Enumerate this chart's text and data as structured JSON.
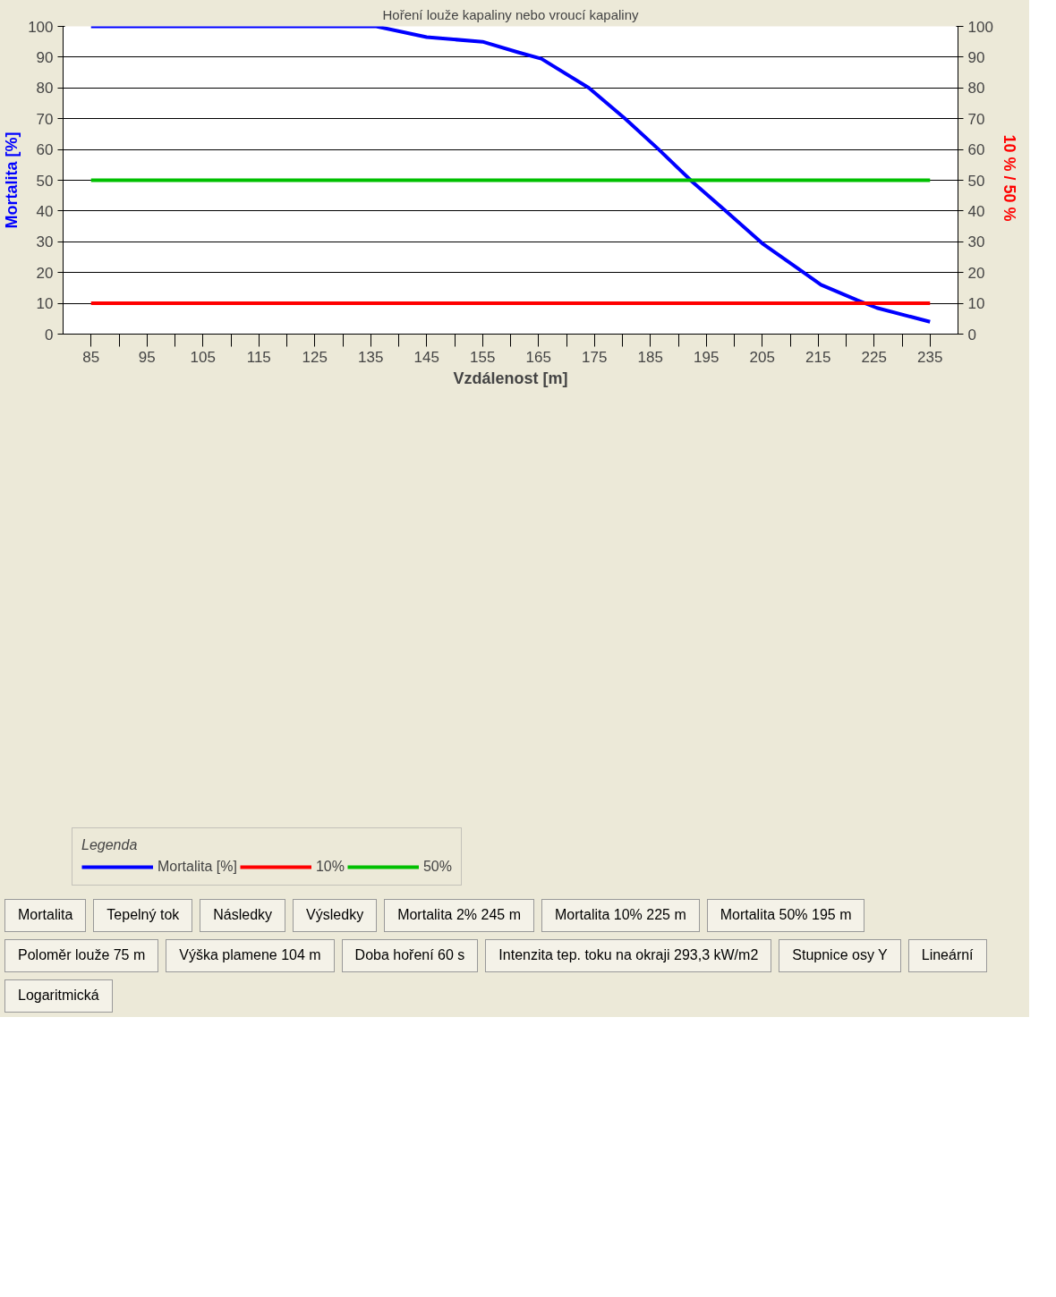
{
  "chart_data": {
    "type": "line",
    "title": "Hoření louže kapaliny nebo vroucí kapaliny",
    "xlabel": "Vzdálenost [m]",
    "ylabel": "Mortalita [%]",
    "y2label": "10 % /  50 %",
    "legend_title": "Legenda",
    "legend": "bottom",
    "grid": "y",
    "line_style": "solid",
    "xlim": [
      80,
      240
    ],
    "xticks": [
      85,
      {
        "value": 90,
        "label": null
      },
      95,
      {
        "value": 100,
        "label": null
      },
      105,
      {
        "value": 110,
        "label": null
      },
      115,
      {
        "value": 120,
        "label": null
      },
      125,
      {
        "value": 130,
        "label": null
      },
      135,
      {
        "value": 140,
        "label": null
      },
      145,
      {
        "value": 150,
        "label": null
      },
      155,
      {
        "value": 160,
        "label": null
      },
      165,
      {
        "value": 170,
        "label": null
      },
      175,
      {
        "value": 180,
        "label": null
      },
      185,
      {
        "value": 190,
        "label": null
      },
      195,
      {
        "value": 200,
        "label": null
      },
      205,
      {
        "value": 210,
        "label": null
      },
      215,
      {
        "value": 220,
        "label": null
      },
      225,
      {
        "value": 230,
        "label": null
      },
      235
    ],
    "ylim": [
      0,
      100
    ],
    "yticks": [
      0,
      10,
      20,
      30,
      40,
      50,
      60,
      70,
      80,
      90,
      100
    ],
    "y2lim": [
      0,
      100
    ],
    "y2ticks": [
      0,
      10,
      20,
      30,
      40,
      50,
      60,
      70,
      80,
      90,
      100
    ],
    "series": [
      {
        "name": "Mortalita [%]",
        "color": "#0000ff",
        "x": [
          85,
          136,
          145,
          155,
          161.5,
          165.5,
          174,
          180.5,
          186.5,
          192.5,
          198.5,
          205,
          212,
          215.5,
          222,
          225.5,
          235
        ],
        "values": [
          100,
          100,
          96.5,
          95,
          91.5,
          89.5,
          80,
          70,
          60,
          49.5,
          40,
          29.5,
          20.5,
          16,
          11,
          8.5,
          4
        ]
      },
      {
        "name": "10%",
        "color": "#ff0000",
        "x": [
          85,
          235
        ],
        "values": [
          10,
          10
        ]
      },
      {
        "name": "50%",
        "color": "#00c000",
        "x": [
          85,
          235
        ],
        "values": [
          50,
          50
        ]
      }
    ],
    "annotations": [
      "Mortalita",
      "Tepelný tok",
      "Následky",
      "Výsledky",
      "Mortalita 2% 245 m",
      "Mortalita 10% 225 m",
      "Mortalita 50% 195 m",
      "Poloměr louže 75 m",
      "Výška plamene 104 m",
      "Doba hoření 60 s",
      "Intenzita tep. toku na okraji 293,3 kW/m2",
      "Stupnice osy Y",
      "Lineární",
      "Logaritmická"
    ]
  }
}
